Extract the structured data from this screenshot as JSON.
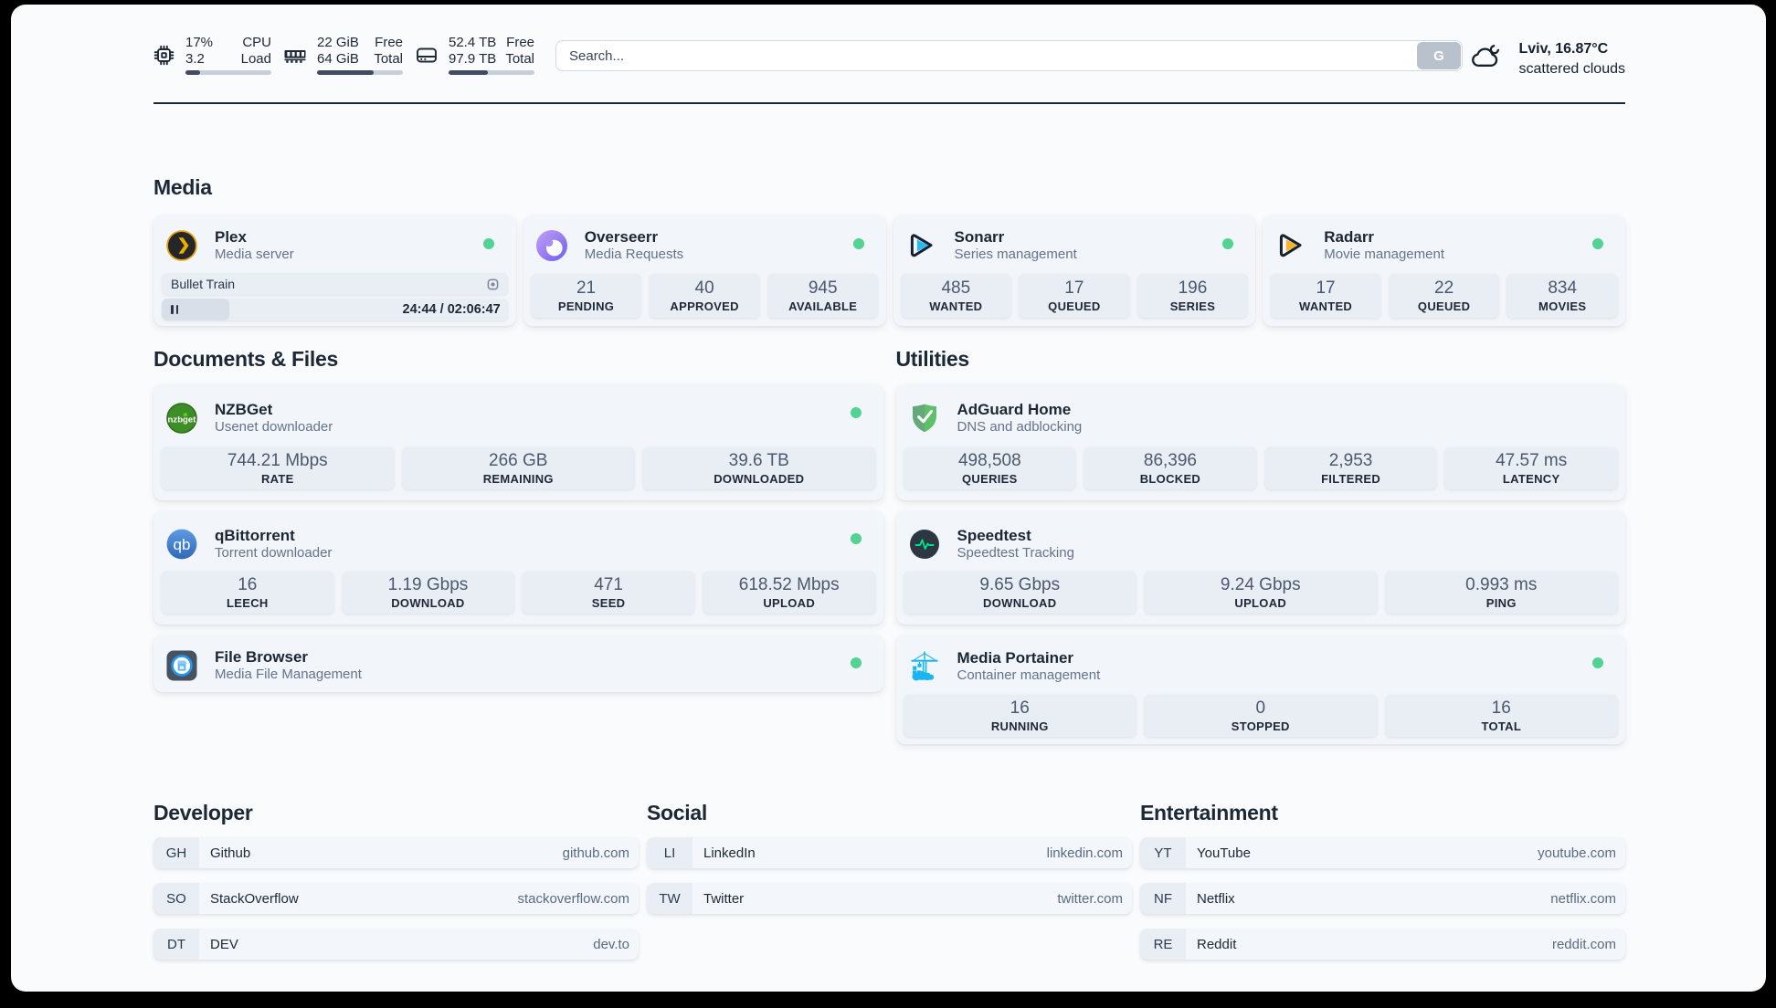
{
  "topbar": {
    "resources": [
      {
        "icon": "cpu-icon",
        "values": [
          "17%",
          "3.2"
        ],
        "labels": [
          "CPU",
          "Load"
        ],
        "progress_percent": 17
      },
      {
        "icon": "memory-icon",
        "values": [
          "22 GiB",
          "64 GiB"
        ],
        "labels": [
          "Free",
          "Total"
        ],
        "progress_percent": 66
      },
      {
        "icon": "disk-icon",
        "values": [
          "52.4 TB",
          "97.9 TB"
        ],
        "labels": [
          "Free",
          "Total"
        ],
        "progress_percent": 46
      }
    ],
    "search": {
      "placeholder": "Search...",
      "button_label": "G"
    },
    "weather": {
      "location": "Lviv, 16.87°C",
      "condition": "scattered clouds"
    }
  },
  "sections": {
    "media": {
      "title": "Media",
      "services": [
        {
          "name": "Plex",
          "description": "Media server",
          "icon": "plex-icon",
          "status": "online",
          "player": {
            "track_title": "Bullet Train",
            "time": "24:44 / 02:06:47",
            "progress_percent": 19.5
          }
        },
        {
          "name": "Overseerr",
          "description": "Media Requests",
          "icon": "overseerr-icon",
          "status": "online",
          "stats": [
            {
              "value": "21",
              "label": "PENDING"
            },
            {
              "value": "40",
              "label": "APPROVED"
            },
            {
              "value": "945",
              "label": "AVAILABLE"
            }
          ]
        },
        {
          "name": "Sonarr",
          "description": "Series management",
          "icon": "sonarr-icon",
          "status": "online",
          "stats": [
            {
              "value": "485",
              "label": "WANTED"
            },
            {
              "value": "17",
              "label": "QUEUED"
            },
            {
              "value": "196",
              "label": "SERIES"
            }
          ]
        },
        {
          "name": "Radarr",
          "description": "Movie management",
          "icon": "radarr-icon",
          "status": "online",
          "stats": [
            {
              "value": "17",
              "label": "WANTED"
            },
            {
              "value": "22",
              "label": "QUEUED"
            },
            {
              "value": "834",
              "label": "MOVIES"
            }
          ]
        }
      ]
    },
    "documents": {
      "title": "Documents & Files",
      "services": [
        {
          "name": "NZBGet",
          "description": "Usenet downloader",
          "icon": "nzbget-icon",
          "status": "online",
          "stats": [
            {
              "value": "744.21 Mbps",
              "label": "RATE"
            },
            {
              "value": "266 GB",
              "label": "REMAINING"
            },
            {
              "value": "39.6 TB",
              "label": "DOWNLOADED"
            }
          ]
        },
        {
          "name": "qBittorrent",
          "description": "Torrent downloader",
          "icon": "qbittorrent-icon",
          "status": "online",
          "stats": [
            {
              "value": "16",
              "label": "LEECH"
            },
            {
              "value": "1.19 Gbps",
              "label": "DOWNLOAD"
            },
            {
              "value": "471",
              "label": "SEED"
            },
            {
              "value": "618.52 Mbps",
              "label": "UPLOAD"
            }
          ]
        },
        {
          "name": "File Browser",
          "description": "Media File Management",
          "icon": "filebrowser-icon",
          "status": "online"
        }
      ]
    },
    "utilities": {
      "title": "Utilities",
      "services": [
        {
          "name": "AdGuard Home",
          "description": "DNS and adblocking",
          "icon": "adguard-icon",
          "stats": [
            {
              "value": "498,508",
              "label": "QUERIES"
            },
            {
              "value": "86,396",
              "label": "BLOCKED"
            },
            {
              "value": "2,953",
              "label": "FILTERED"
            },
            {
              "value": "47.57 ms",
              "label": "LATENCY"
            }
          ]
        },
        {
          "name": "Speedtest",
          "description": "Speedtest Tracking",
          "icon": "speedtest-icon",
          "stats": [
            {
              "value": "9.65 Gbps",
              "label": "DOWNLOAD"
            },
            {
              "value": "9.24 Gbps",
              "label": "UPLOAD"
            },
            {
              "value": "0.993 ms",
              "label": "PING"
            }
          ]
        },
        {
          "name": "Media Portainer",
          "description": "Container management",
          "icon": "portainer-icon",
          "status": "online",
          "stats": [
            {
              "value": "16",
              "label": "RUNNING"
            },
            {
              "value": "0",
              "label": "STOPPED"
            },
            {
              "value": "16",
              "label": "TOTAL"
            }
          ]
        }
      ]
    }
  },
  "bookmarks": [
    {
      "title": "Developer",
      "items": [
        {
          "abbr": "GH",
          "name": "Github",
          "url": "github.com"
        },
        {
          "abbr": "SO",
          "name": "StackOverflow",
          "url": "stackoverflow.com"
        },
        {
          "abbr": "DT",
          "name": "DEV",
          "url": "dev.to"
        }
      ]
    },
    {
      "title": "Social",
      "items": [
        {
          "abbr": "LI",
          "name": "LinkedIn",
          "url": "linkedin.com"
        },
        {
          "abbr": "TW",
          "name": "Twitter",
          "url": "twitter.com"
        }
      ]
    },
    {
      "title": "Entertainment",
      "items": [
        {
          "abbr": "YT",
          "name": "YouTube",
          "url": "youtube.com"
        },
        {
          "abbr": "NF",
          "name": "Netflix",
          "url": "netflix.com"
        },
        {
          "abbr": "RE",
          "name": "Reddit",
          "url": "reddit.com"
        }
      ]
    }
  ],
  "colors": {
    "page_background": "#fafbfd",
    "card_background": "#f2f5f9",
    "block_background": "#e9edf4",
    "text_dark": "#1e2836",
    "text_muted": "#64748b",
    "status_online": "#52d394",
    "outer_background": "#000000"
  }
}
